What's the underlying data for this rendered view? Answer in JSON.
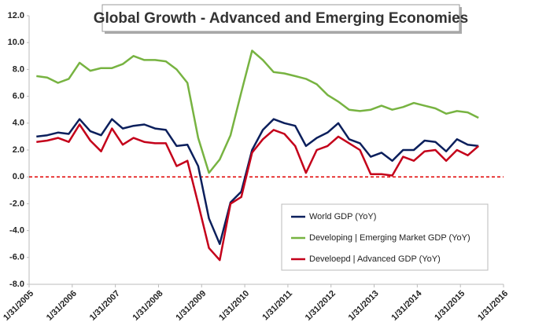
{
  "chart_data": {
    "type": "line",
    "title": "Global Growth - Advanced and Emerging Economies",
    "x": [
      2005.25,
      2005.5,
      2005.75,
      2006,
      2006.25,
      2006.5,
      2006.75,
      2007,
      2007.25,
      2007.5,
      2007.75,
      2008,
      2008.25,
      2008.5,
      2008.75,
      2009,
      2009.25,
      2009.5,
      2009.75,
      2010,
      2010.25,
      2010.5,
      2010.75,
      2011,
      2011.25,
      2011.5,
      2011.75,
      2012,
      2012.25,
      2012.5,
      2012.75,
      2013,
      2013.25,
      2013.5,
      2013.75,
      2014,
      2014.25,
      2014.5,
      2014.75,
      2015,
      2015.25,
      2015.5
    ],
    "series": [
      {
        "name": "World GDP (YoY)",
        "color": "#0b1f5c",
        "values": [
          3.0,
          3.1,
          3.3,
          3.2,
          4.3,
          3.4,
          3.1,
          4.3,
          3.6,
          3.8,
          3.9,
          3.6,
          3.5,
          2.3,
          2.4,
          0.8,
          -3.1,
          -5.0,
          -1.9,
          -1.1,
          2.0,
          3.5,
          4.3,
          4.0,
          3.8,
          2.3,
          2.9,
          3.3,
          4.0,
          2.8,
          2.5,
          1.5,
          1.8,
          1.2,
          2.0,
          2.0,
          2.7,
          2.6,
          1.9,
          2.8,
          2.4,
          2.3
        ]
      },
      {
        "name": "Developing | Emerging Market GDP (YoY)",
        "color": "#77b341",
        "values": [
          7.5,
          7.4,
          7.0,
          7.3,
          8.5,
          7.9,
          8.1,
          8.1,
          8.4,
          9.0,
          8.7,
          8.7,
          8.6,
          8.0,
          7.0,
          2.9,
          0.3,
          1.3,
          3.1,
          6.3,
          9.4,
          8.7,
          7.8,
          7.7,
          7.5,
          7.3,
          6.9,
          6.1,
          5.6,
          5.0,
          4.9,
          5.0,
          5.3,
          5.0,
          5.2,
          5.5,
          5.3,
          5.1,
          4.7,
          4.9,
          4.8,
          4.4
        ]
      },
      {
        "name": "Develoepd | Advanced GDP (YoY)",
        "color": "#c4001a",
        "values": [
          2.6,
          2.7,
          2.9,
          2.6,
          3.9,
          2.7,
          1.9,
          3.6,
          2.4,
          2.9,
          2.6,
          2.5,
          2.5,
          0.8,
          1.2,
          -2.0,
          -5.3,
          -6.2,
          -2.0,
          -1.5,
          1.8,
          2.8,
          3.5,
          3.2,
          2.3,
          0.3,
          2.0,
          2.3,
          3.0,
          2.5,
          2.0,
          0.2,
          0.2,
          0.1,
          1.5,
          1.2,
          1.9,
          2.0,
          1.2,
          2.0,
          1.6,
          2.3
        ]
      }
    ],
    "xlim": [
      2005.08,
      2016.08
    ],
    "xticks": [
      {
        "value": 2005.08,
        "label": "1/31/2005"
      },
      {
        "value": 2006.08,
        "label": "1/31/2006"
      },
      {
        "value": 2007.08,
        "label": "1/31/2007"
      },
      {
        "value": 2008.08,
        "label": "1/31/2008"
      },
      {
        "value": 2009.08,
        "label": "1/31/2009"
      },
      {
        "value": 2010.08,
        "label": "1/31/2010"
      },
      {
        "value": 2011.08,
        "label": "1/31/2011"
      },
      {
        "value": 2012.08,
        "label": "1/31/2012"
      },
      {
        "value": 2013.08,
        "label": "1/31/2013"
      },
      {
        "value": 2014.08,
        "label": "1/31/2014"
      },
      {
        "value": 2015.08,
        "label": "1/31/2015"
      },
      {
        "value": 2016.08,
        "label": "1/31/2016"
      }
    ],
    "ylim": [
      -8,
      12
    ],
    "yticks": [
      {
        "value": -8,
        "label": "-8.0"
      },
      {
        "value": -6,
        "label": "-6.0"
      },
      {
        "value": -4,
        "label": "-4.0"
      },
      {
        "value": -2,
        "label": "-2.0"
      },
      {
        "value": 0,
        "label": "0.0"
      },
      {
        "value": 2,
        "label": "2.0"
      },
      {
        "value": 4,
        "label": "4.0"
      },
      {
        "value": 6,
        "label": "6.0"
      },
      {
        "value": 8,
        "label": "8.0"
      },
      {
        "value": 10,
        "label": "10.0"
      },
      {
        "value": 12,
        "label": "12.0"
      }
    ],
    "reference_line": {
      "value": 0,
      "color": "#e00000"
    },
    "grid": false
  }
}
